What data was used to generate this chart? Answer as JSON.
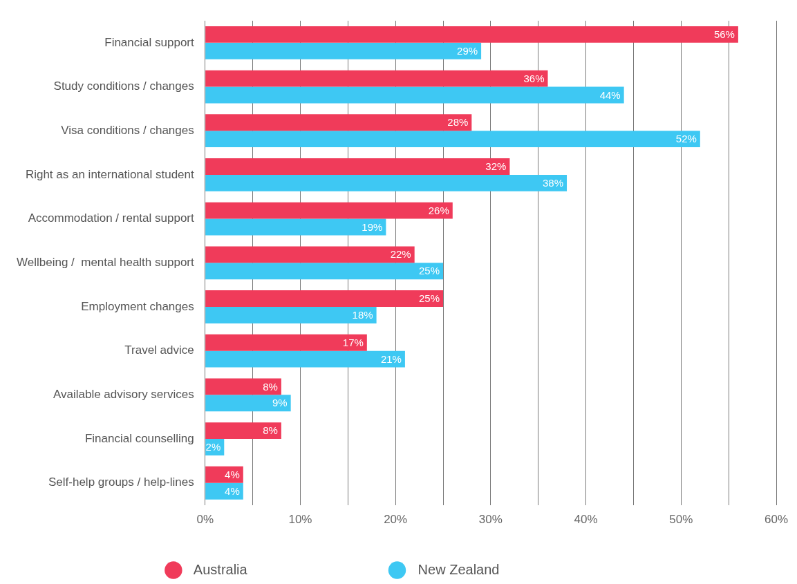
{
  "chart_data": {
    "type": "bar",
    "orientation": "horizontal",
    "categories": [
      "Financial support",
      "Study conditions / changes",
      "Visa conditions / changes",
      "Right as an international student",
      "Accommodation / rental support",
      "Wellbeing /  mental health support",
      "Employment changes",
      "Travel advice",
      "Available advisory services",
      "Financial counselling",
      "Self-help groups / help-lines"
    ],
    "series": [
      {
        "name": "Australia",
        "color": "#f03b5a",
        "values": [
          56,
          36,
          28,
          32,
          26,
          22,
          25,
          17,
          8,
          8,
          4
        ],
        "value_labels": [
          "56%",
          "36%",
          "28%",
          "32%",
          "26%",
          "22%",
          "25%",
          "17%",
          "8%",
          "8%",
          "4%"
        ]
      },
      {
        "name": "New Zealand",
        "color": "#3ec8f3",
        "values": [
          29,
          44,
          52,
          38,
          19,
          25,
          18,
          21,
          9,
          2,
          4
        ],
        "value_labels": [
          "29%",
          "44%",
          "52%",
          "38%",
          "19%",
          "25%",
          "18%",
          "21%",
          "9%",
          "2%",
          "4%"
        ]
      }
    ],
    "xlim": [
      0,
      60
    ],
    "xticks": [
      {
        "value": 0,
        "label": "0%"
      },
      {
        "value": 5,
        "label": null
      },
      {
        "value": 10,
        "label": "10%"
      },
      {
        "value": 15,
        "label": null
      },
      {
        "value": 20,
        "label": "20%"
      },
      {
        "value": 25,
        "label": null
      },
      {
        "value": 30,
        "label": "30%"
      },
      {
        "value": 35,
        "label": null
      },
      {
        "value": 40,
        "label": "40%"
      },
      {
        "value": 45,
        "label": null
      },
      {
        "value": 50,
        "label": "50%"
      },
      {
        "value": 55,
        "label": null
      },
      {
        "value": 60,
        "label": "60%"
      }
    ],
    "grid": "x",
    "legend": "bottom",
    "marker": "circle"
  }
}
